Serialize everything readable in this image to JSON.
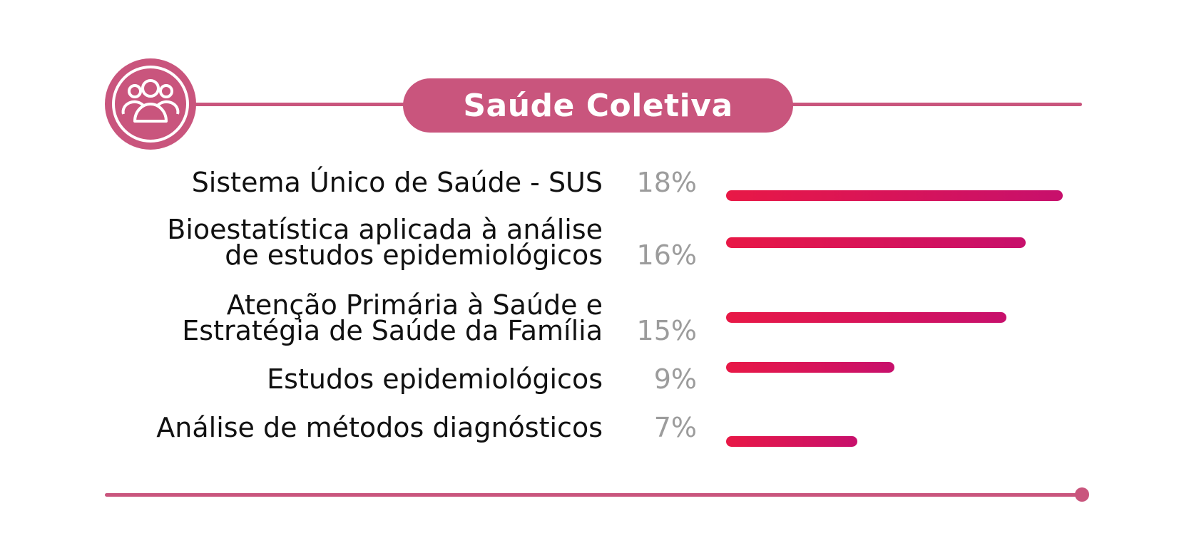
{
  "header": {
    "title": "Saúde Coletiva",
    "icon": "people-group-icon",
    "accent_color": "#c9557d"
  },
  "chart_data": {
    "type": "bar",
    "orientation": "horizontal",
    "title": "Saúde Coletiva",
    "categories": [
      "Sistema Único de Saúde - SUS",
      "Bioestatística aplicada à análise de estudos epidemiológicos",
      "Atenção Primária à Saúde e Estratégia de Saúde da Família",
      "Estudos epidemiológicos",
      "Análise de métodos diagnósticos"
    ],
    "values": [
      18,
      16,
      15,
      9,
      7
    ],
    "value_labels": [
      "18%",
      "16%",
      "15%",
      "9%",
      "7%"
    ],
    "unit": "%",
    "xlim": [
      0,
      18
    ],
    "bar_color_start": "#e81846",
    "bar_color_end": "#c7106c",
    "grid": false,
    "legend": "none"
  }
}
